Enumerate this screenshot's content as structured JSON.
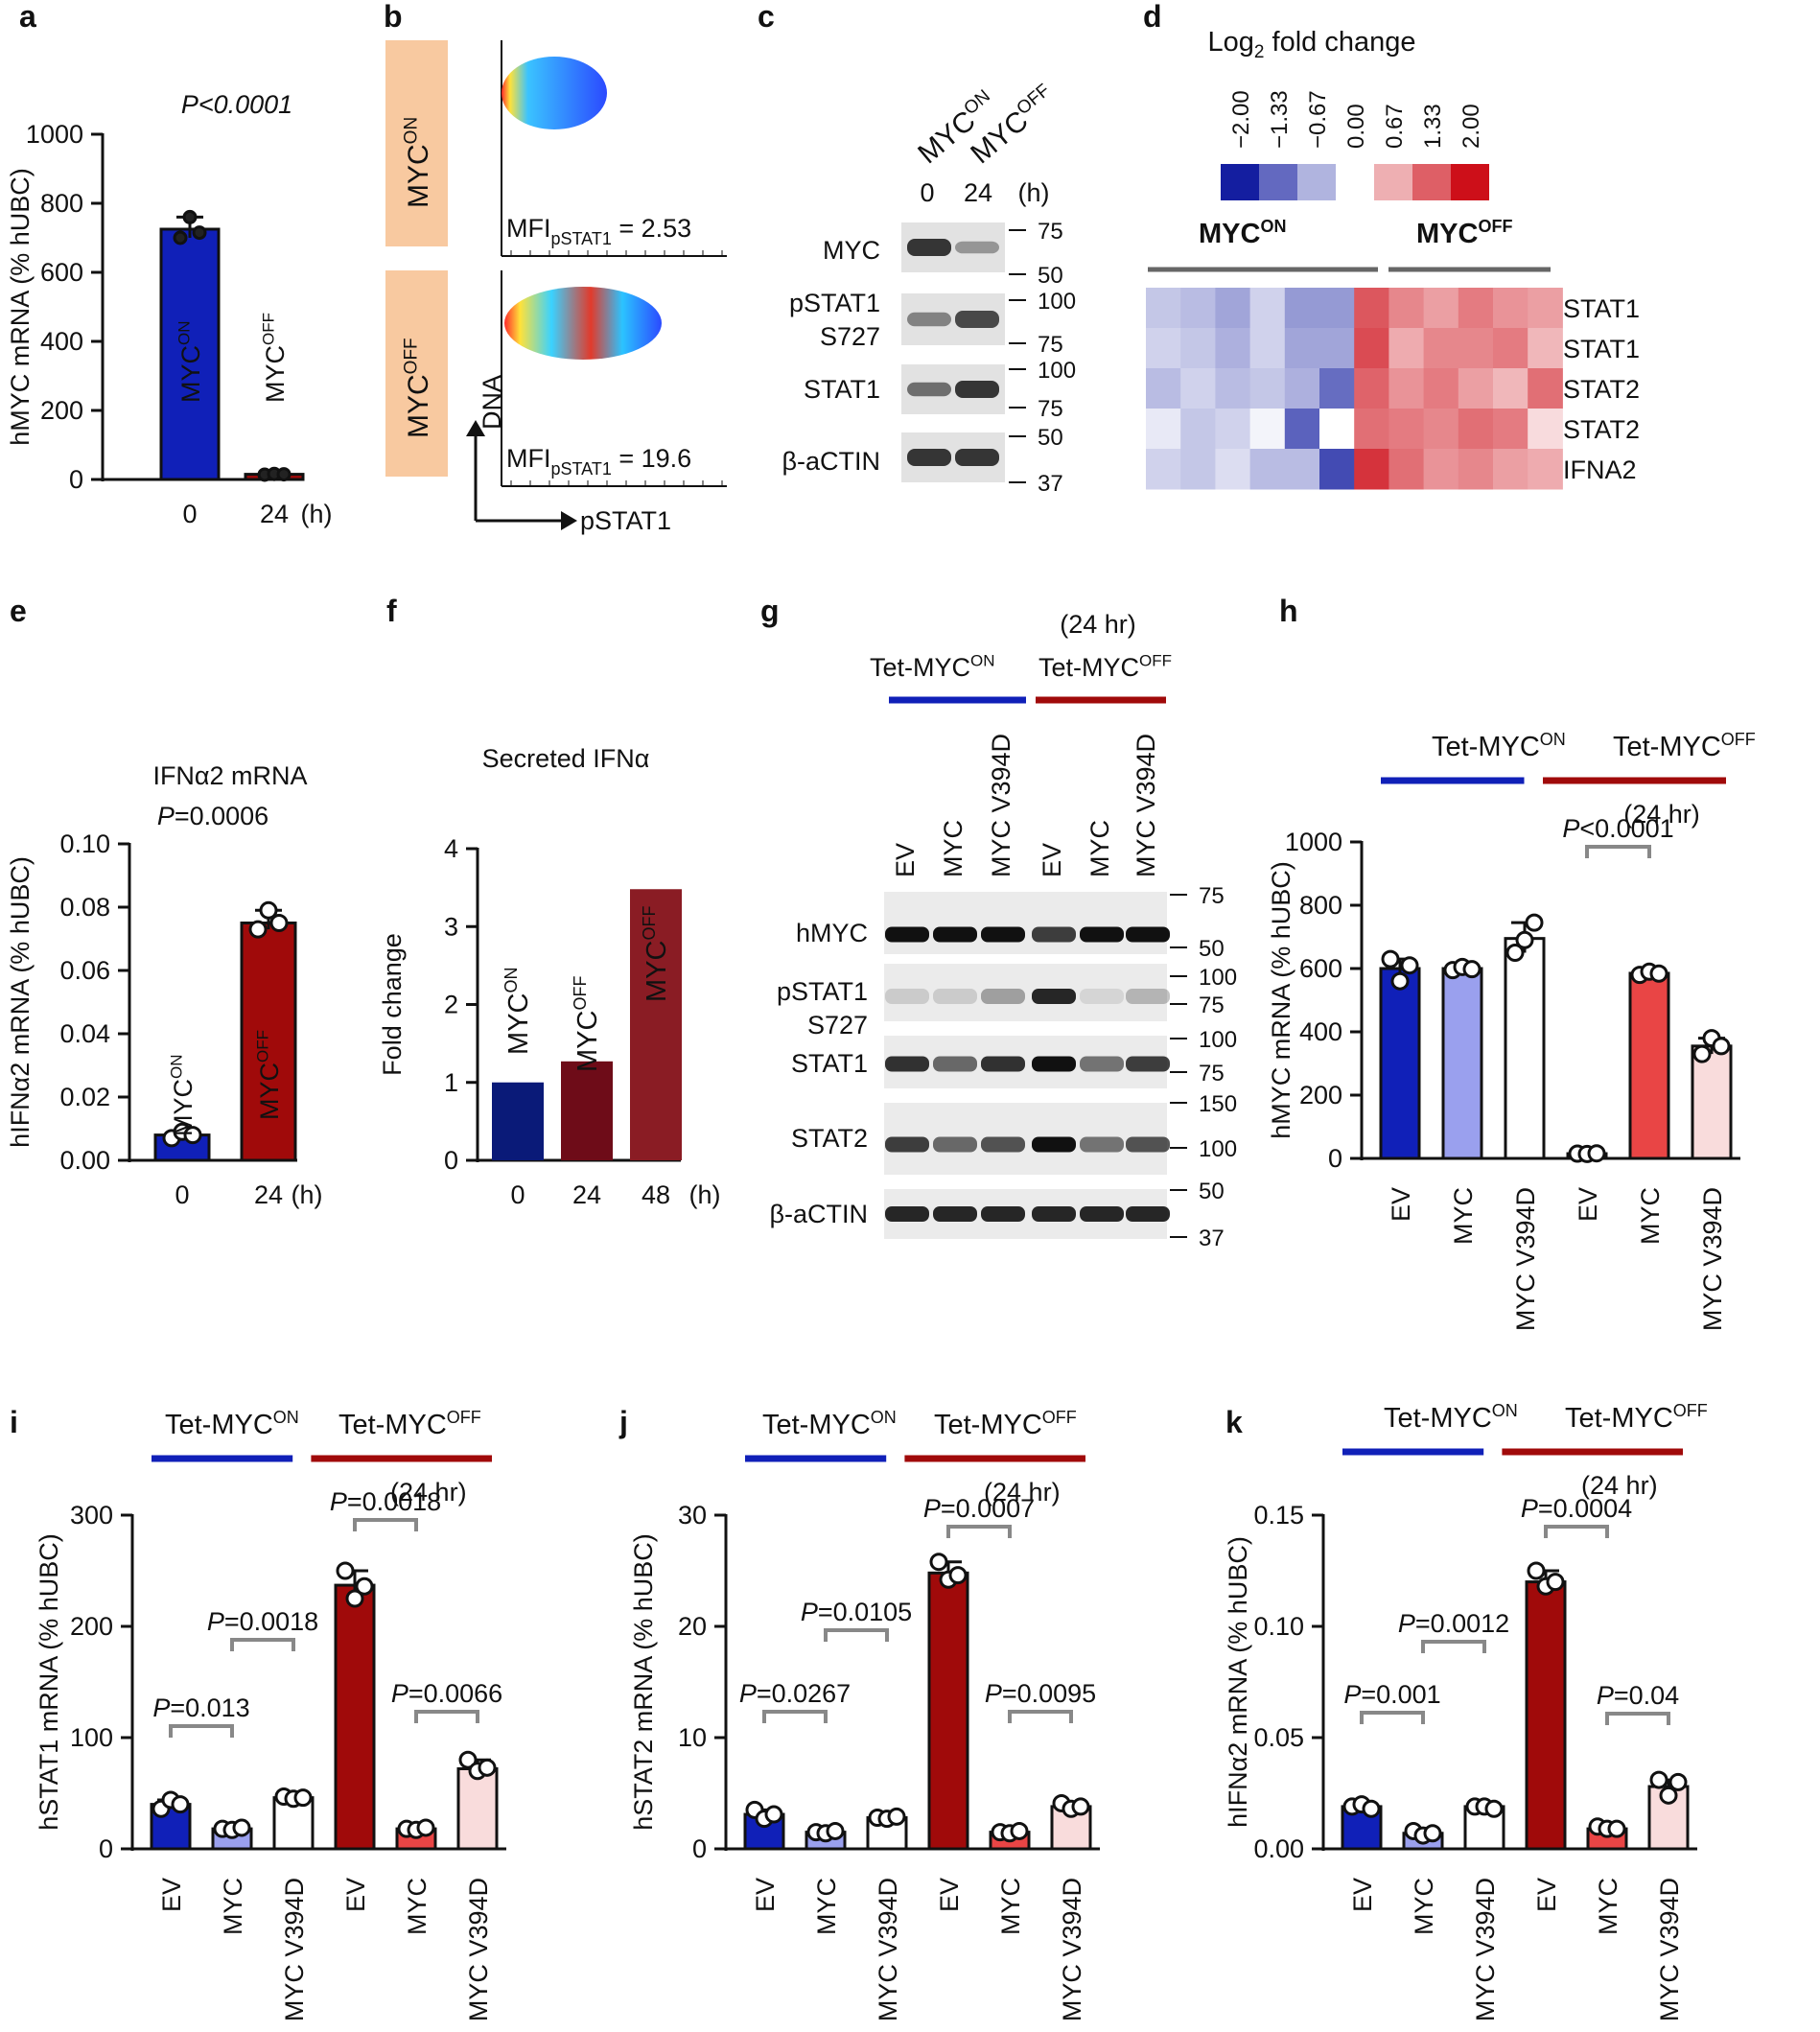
{
  "figure": {
    "panel_letters": [
      "a",
      "b",
      "c",
      "d",
      "e",
      "f",
      "g",
      "h",
      "i",
      "j",
      "k"
    ]
  },
  "colors": {
    "blue": "#1020b8",
    "light_blue": "#9aa0ee",
    "dark_red": "#a00a0a",
    "red": "#e94545",
    "pink": "#f9dcdc",
    "navy": "#0a1a78",
    "maroon": "#6e0c18",
    "dark_maroon": "#8a1c24",
    "on_label": "#1a1a9a",
    "off_label": "#b03030",
    "peach": "#f8c9a0"
  },
  "panel_a": {
    "pvalue": "P<0.0001",
    "bar_labels": [
      "MYCON",
      "MYCOFF"
    ],
    "chart_data": {
      "type": "bar",
      "categories": [
        "0",
        "24"
      ],
      "values": [
        725,
        15
      ],
      "points": [
        [
          700,
          760,
          715
        ],
        [
          14,
          16,
          15
        ]
      ],
      "ylabel": "hMYC mRNA (% hUBC)",
      "xunit": "(h)",
      "ylim": [
        0,
        1000
      ],
      "yticks": [
        "0",
        "200",
        "400",
        "600",
        "800",
        "1000"
      ]
    }
  },
  "panel_b": {
    "rows": [
      "MYCON",
      "MYCOFF"
    ],
    "mfi": [
      "MFIpSTAT1 = 2.53",
      "MFIpSTAT1 = 19.6"
    ],
    "mfi_values": [
      "2.53",
      "19.6"
    ],
    "xaxis": "pSTAT1",
    "yaxis": "DNA"
  },
  "panel_c": {
    "lanes": [
      "MYCON",
      "MYCOFF"
    ],
    "times": [
      "0",
      "24",
      "(h)"
    ],
    "bands": [
      "MYC",
      "pSTAT1",
      "S727",
      "STAT1",
      "β-aCTIN"
    ],
    "markers": [
      "75",
      "50",
      "100",
      "75",
      "100",
      "75",
      "50",
      "37"
    ]
  },
  "panel_d": {
    "title": "Log2 fold change",
    "scale": [
      "−2.00",
      "−1.33",
      "−0.67",
      "0.00",
      "0.67",
      "1.33",
      "2.00"
    ],
    "groups": [
      "MYCON",
      "MYCOFF"
    ],
    "rows": [
      "STAT1",
      "STAT1",
      "STAT2",
      "STAT2",
      "IFNA2"
    ],
    "chart_data": {
      "type": "heatmap",
      "rows": [
        "STAT1",
        "STAT1",
        "STAT2",
        "STAT2",
        "IFNA2"
      ],
      "columns": 12,
      "values": [
        [
          -0.5,
          -0.6,
          -0.8,
          -0.4,
          -0.9,
          -0.9,
          1.4,
          1.0,
          0.8,
          1.1,
          0.9,
          0.8
        ],
        [
          -0.4,
          -0.5,
          -0.7,
          -0.4,
          -0.8,
          -0.8,
          1.5,
          0.7,
          1.0,
          1.0,
          1.1,
          0.6
        ],
        [
          -0.6,
          -0.4,
          -0.6,
          -0.5,
          -0.7,
          -1.3,
          1.3,
          0.9,
          1.1,
          0.8,
          0.6,
          1.2
        ],
        [
          -0.2,
          -0.5,
          -0.4,
          -0.1,
          -1.4,
          0.0,
          1.2,
          1.1,
          1.0,
          1.2,
          1.1,
          0.3
        ],
        [
          -0.4,
          -0.5,
          -0.3,
          -0.6,
          -0.6,
          -1.6,
          1.7,
          1.2,
          0.9,
          1.0,
          0.8,
          0.7
        ]
      ],
      "range": [
        -2,
        2
      ]
    }
  },
  "panel_e": {
    "title": "IFNα2 mRNA",
    "pvalue": "P=0.0006",
    "bar_labels": [
      "MYCON",
      "MYCOFF"
    ],
    "chart_data": {
      "type": "bar",
      "categories": [
        "0",
        "24"
      ],
      "values": [
        0.008,
        0.075
      ],
      "points": [
        [
          0.007,
          0.009,
          0.008
        ],
        [
          0.073,
          0.079,
          0.075
        ]
      ],
      "ylabel": "hIFNα2 mRNA (% hUBC)",
      "xunit": "(h)",
      "ylim": [
        0,
        0.1
      ],
      "yticks": [
        "0.00",
        "0.02",
        "0.04",
        "0.06",
        "0.08",
        "0.10"
      ]
    }
  },
  "panel_f": {
    "title": "Secreted IFNα",
    "bar_labels": [
      "MYCON",
      "MYCOFF",
      "MYCOFF"
    ],
    "chart_data": {
      "type": "bar",
      "categories": [
        "0",
        "24",
        "48"
      ],
      "values": [
        1.0,
        1.27,
        3.48
      ],
      "ylabel": "Fold change",
      "xunit": "(h)",
      "ylim": [
        0,
        4
      ],
      "yticks": [
        "0",
        "1",
        "2",
        "3",
        "4"
      ]
    }
  },
  "panel_g": {
    "time": "(24 hr)",
    "groups": [
      "Tet-MYCON",
      "Tet-MYCOFF"
    ],
    "lanes": [
      "EV",
      "MYC",
      "MYC V394D",
      "EV",
      "MYC",
      "MYC V394D"
    ],
    "bands": [
      "hMYC",
      "pSTAT1",
      "S727",
      "STAT1",
      "STAT2",
      "β-aCTIN"
    ],
    "markers": [
      "75",
      "50",
      "100",
      "75",
      "100",
      "75",
      "150",
      "100",
      "50",
      "37"
    ]
  },
  "panel_h": {
    "groups": [
      "Tet-MYCON",
      "Tet-MYCOFF"
    ],
    "time": "(24 hr)",
    "comparisons": [
      {
        "label": "P<0.0001",
        "from": 3,
        "to": 4
      }
    ],
    "chart_data": {
      "type": "bar",
      "categories": [
        "EV",
        "MYC",
        "MYC V394D",
        "EV",
        "MYC",
        "MYC V394D"
      ],
      "values": [
        600,
        600,
        695,
        15,
        585,
        355
      ],
      "points": [
        [
          630,
          560,
          610
        ],
        [
          595,
          605,
          598
        ],
        [
          650,
          690,
          745
        ],
        [
          15,
          14,
          16
        ],
        [
          580,
          590,
          584
        ],
        [
          330,
          380,
          355
        ]
      ],
      "ylabel": "hMYC mRNA (% hUBC)",
      "ylim": [
        0,
        1000
      ],
      "yticks": [
        "0",
        "200",
        "400",
        "600",
        "800",
        "1000"
      ]
    }
  },
  "panel_i": {
    "groups": [
      "Tet-MYCON",
      "Tet-MYCOFF"
    ],
    "time": "(24 hr)",
    "comparisons": [
      {
        "label": "P=0.013",
        "from": 0,
        "to": 1
      },
      {
        "label": "P=0.0018",
        "from": 1,
        "to": 2
      },
      {
        "label": "P=0.0018",
        "from": 3,
        "to": 4
      },
      {
        "label": "P=0.0066",
        "from": 4,
        "to": 5
      }
    ],
    "chart_data": {
      "type": "bar",
      "categories": [
        "EV",
        "MYC",
        "MYC V394D",
        "EV",
        "MYC",
        "MYC V394D"
      ],
      "values": [
        40,
        18,
        46,
        237,
        18,
        72
      ],
      "points": [
        [
          36,
          44,
          40
        ],
        [
          18,
          17,
          19
        ],
        [
          47,
          45,
          46
        ],
        [
          250,
          225,
          236
        ],
        [
          18,
          17,
          19
        ],
        [
          80,
          70,
          73
        ]
      ],
      "ylabel": "hSTAT1 mRNA (% hUBC)",
      "ylim": [
        0,
        300
      ],
      "yticks": [
        "0",
        "100",
        "200",
        "300"
      ]
    }
  },
  "panel_j": {
    "groups": [
      "Tet-MYCON",
      "Tet-MYCOFF"
    ],
    "time": "(24 hr)",
    "comparisons": [
      {
        "label": "P=0.0267",
        "from": 0,
        "to": 1
      },
      {
        "label": "P=0.0105",
        "from": 1,
        "to": 2
      },
      {
        "label": "P=0.0007",
        "from": 3,
        "to": 4
      },
      {
        "label": "P=0.0095",
        "from": 4,
        "to": 5
      }
    ],
    "chart_data": {
      "type": "bar",
      "categories": [
        "EV",
        "MYC",
        "MYC V394D",
        "EV",
        "MYC",
        "MYC V394D"
      ],
      "values": [
        3.1,
        1.5,
        2.8,
        24.8,
        1.5,
        3.8
      ],
      "points": [
        [
          3.5,
          2.7,
          3.1
        ],
        [
          1.5,
          1.4,
          1.6
        ],
        [
          2.8,
          2.7,
          2.9
        ],
        [
          25.8,
          24.2,
          24.6
        ],
        [
          1.5,
          1.4,
          1.6
        ],
        [
          4.1,
          3.6,
          3.8
        ]
      ],
      "ylabel": "hSTAT2 mRNA (% hUBC)",
      "ylim": [
        0,
        30
      ],
      "yticks": [
        "0",
        "10",
        "20",
        "30"
      ]
    }
  },
  "panel_k": {
    "groups": [
      "Tet-MYCON",
      "Tet-MYCOFF"
    ],
    "time": "(24 hr)",
    "comparisons": [
      {
        "label": "P=0.001",
        "from": 0,
        "to": 1
      },
      {
        "label": "P=0.0012",
        "from": 1,
        "to": 2
      },
      {
        "label": "P=0.0004",
        "from": 3,
        "to": 4
      },
      {
        "label": "P=0.04",
        "from": 4,
        "to": 5
      }
    ],
    "chart_data": {
      "type": "bar",
      "categories": [
        "EV",
        "MYC",
        "MYC V394D",
        "EV",
        "MYC",
        "MYC V394D"
      ],
      "values": [
        0.019,
        0.007,
        0.019,
        0.12,
        0.009,
        0.028
      ],
      "points": [
        [
          0.019,
          0.02,
          0.018
        ],
        [
          0.008,
          0.006,
          0.007
        ],
        [
          0.019,
          0.019,
          0.018
        ],
        [
          0.125,
          0.118,
          0.12
        ],
        [
          0.01,
          0.009,
          0.009
        ],
        [
          0.031,
          0.024,
          0.03
        ]
      ],
      "ylabel": "hIFNα2 mRNA (% hUBC)",
      "ylim": [
        0,
        0.15
      ],
      "yticks": [
        "0.00",
        "0.05",
        "0.10",
        "0.15"
      ]
    }
  }
}
